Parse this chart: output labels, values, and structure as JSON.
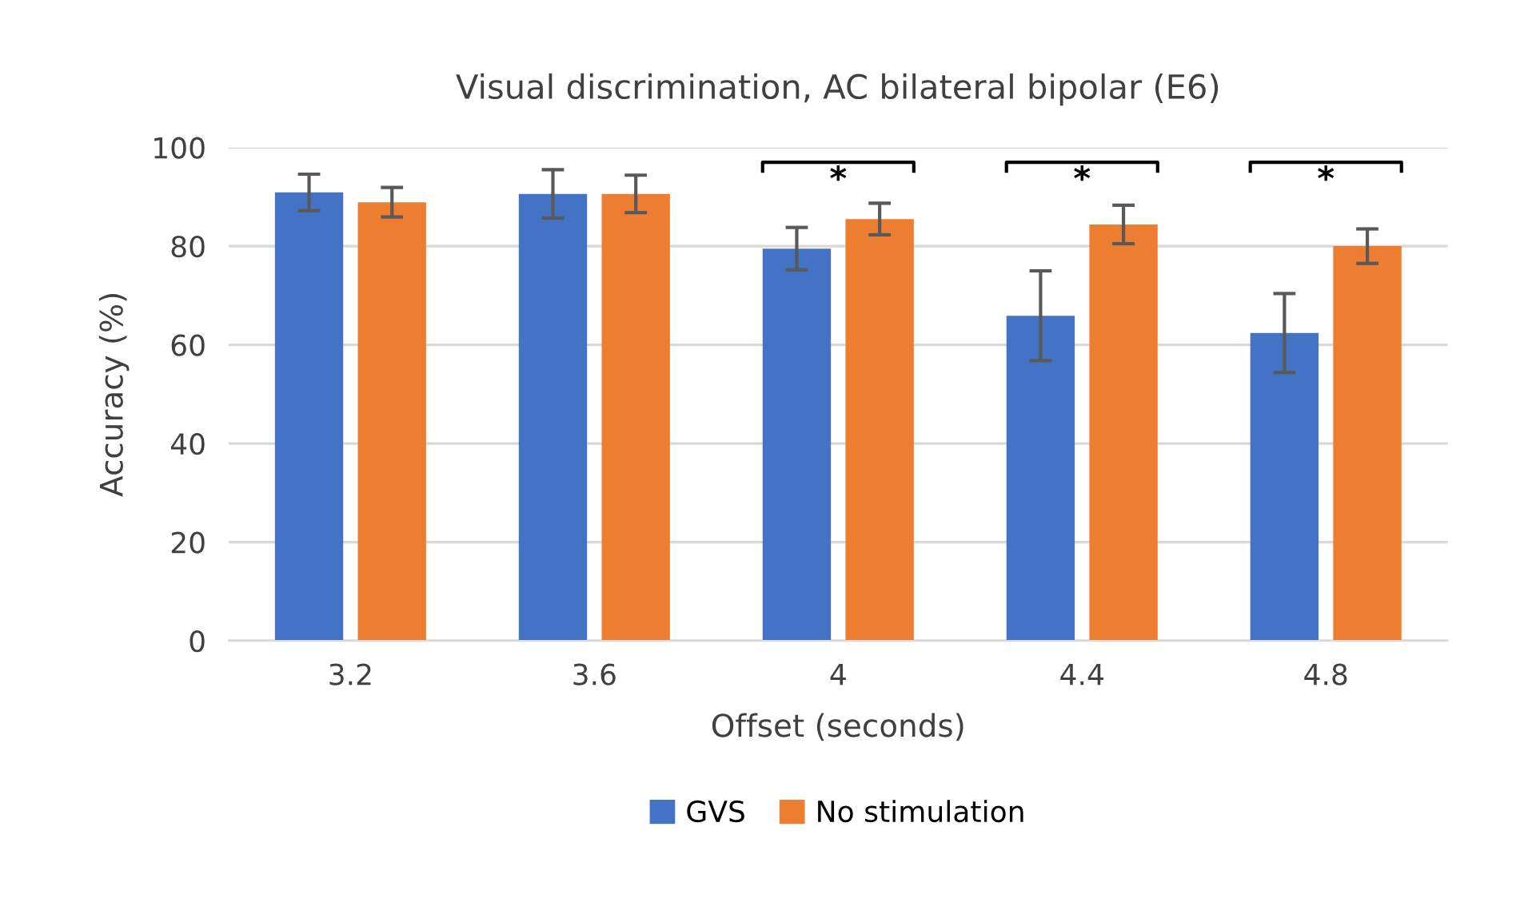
{
  "chart_data": {
    "type": "bar",
    "title": "Visual discrimination, AC bilateral bipolar (E6)",
    "xlabel": "Offset (seconds)",
    "ylabel": "Accuracy (%)",
    "categories": [
      "3.2",
      "3.6",
      "4",
      "4.4",
      "4.8"
    ],
    "series": [
      {
        "name": "GVS",
        "color": "#4472c4",
        "values": [
          90.9,
          90.6,
          79.5,
          65.9,
          62.4
        ],
        "errors": [
          3.7,
          4.9,
          4.3,
          9.1,
          8
        ]
      },
      {
        "name": "No stimulation",
        "color": "#ed7d31",
        "values": [
          88.9,
          90.6,
          85.5,
          84.4,
          80
        ],
        "errors": [
          3,
          3.8,
          3.2,
          3.9,
          3.5
        ]
      }
    ],
    "ylim": [
      0,
      100
    ],
    "yticks": [
      0,
      20,
      40,
      60,
      80,
      100
    ],
    "grid": "y",
    "legend": "bottom",
    "annotations": [
      "*",
      "*",
      "*"
    ]
  }
}
